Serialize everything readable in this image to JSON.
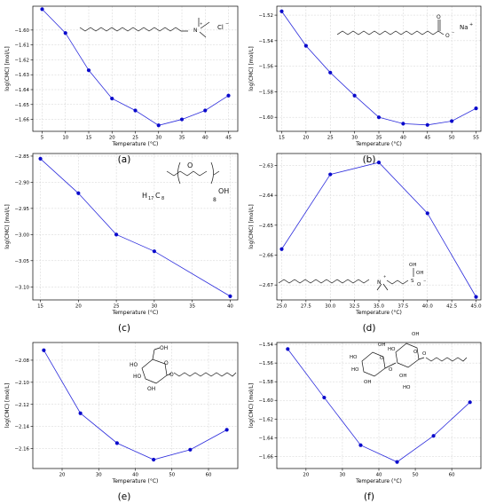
{
  "chart_data": [
    {
      "type": "line",
      "panel_label": "(a)",
      "xlabel": "Temperature (°C)",
      "ylabel": "log(CMC) [mol/L]",
      "xlim": [
        3,
        47
      ],
      "ylim": [
        -1.668,
        -1.584
      ],
      "xticks": [
        5,
        10,
        15,
        20,
        25,
        30,
        35,
        40,
        45
      ],
      "yticks": [
        -1.66,
        -1.65,
        -1.64,
        -1.63,
        -1.62,
        -1.61,
        -1.6
      ],
      "xtick_labels": [
        "5",
        "10",
        "15",
        "20",
        "25",
        "30",
        "35",
        "40",
        "45"
      ],
      "ytick_labels": [
        "−1.66",
        "−1.65",
        "−1.64",
        "−1.63",
        "−1.62",
        "−1.61",
        "−1.60"
      ],
      "grid": true,
      "x": [
        5,
        10,
        15,
        20,
        25,
        30,
        35,
        40,
        45
      ],
      "y": [
        -1.586,
        -1.602,
        -1.627,
        -1.646,
        -1.654,
        -1.664,
        -1.66,
        -1.654,
        -1.644
      ],
      "structure_labels": [
        "N",
        "+",
        "Cl",
        "−"
      ]
    },
    {
      "type": "line",
      "panel_label": "(b)",
      "xlabel": "Temperature (°C)",
      "ylabel": "log(CMC) [mol/L]",
      "xlim": [
        14,
        56
      ],
      "ylim": [
        -1.611,
        -1.513
      ],
      "xticks": [
        15,
        20,
        25,
        30,
        35,
        40,
        45,
        50,
        55
      ],
      "yticks": [
        -1.6,
        -1.58,
        -1.56,
        -1.54,
        -1.52
      ],
      "xtick_labels": [
        "15",
        "20",
        "25",
        "30",
        "35",
        "40",
        "45",
        "50",
        "55"
      ],
      "ytick_labels": [
        "−1.60",
        "−1.58",
        "−1.56",
        "−1.54",
        "−1.52"
      ],
      "grid": true,
      "x": [
        15,
        20,
        25,
        30,
        35,
        40,
        45,
        50,
        55
      ],
      "y": [
        -1.517,
        -1.544,
        -1.565,
        -1.583,
        -1.6,
        -1.605,
        -1.606,
        -1.603,
        -1.593
      ],
      "structure_labels": [
        "O",
        "O",
        "−",
        "Na",
        "+"
      ]
    },
    {
      "type": "line",
      "panel_label": "(c)",
      "xlabel": "Temperature (°C)",
      "ylabel": "log(CMC) [mol/L]",
      "xlim": [
        14,
        41
      ],
      "ylim": [
        -3.125,
        -2.845
      ],
      "xticks": [
        15,
        20,
        25,
        30,
        35,
        40
      ],
      "yticks": [
        -3.1,
        -3.05,
        -3.0,
        -2.95,
        -2.9,
        -2.85
      ],
      "xtick_labels": [
        "15",
        "20",
        "25",
        "30",
        "35",
        "40"
      ],
      "ytick_labels": [
        "−3.10",
        "−3.05",
        "−3.00",
        "−2.95",
        "−2.90",
        "−2.85"
      ],
      "grid": true,
      "x": [
        15,
        20,
        25,
        30,
        40
      ],
      "y": [
        -2.855,
        -2.921,
        -3.0,
        -3.032,
        -3.118
      ],
      "structure_labels": [
        "H",
        "17",
        "C",
        "8",
        "O",
        "OH",
        "8"
      ]
    },
    {
      "type": "line",
      "panel_label": "(d)",
      "xlabel": "Temperature (°C)",
      "ylabel": "log(CMC) [mol/L]",
      "xlim": [
        24.5,
        45.5
      ],
      "ylim": [
        -2.675,
        -2.626
      ],
      "xticks": [
        25.0,
        27.5,
        30.0,
        32.5,
        35.0,
        37.5,
        40.0,
        42.5,
        45.0
      ],
      "yticks": [
        -2.67,
        -2.66,
        -2.65,
        -2.64,
        -2.63
      ],
      "xtick_labels": [
        "25.0",
        "27.5",
        "30.0",
        "32.5",
        "35.0",
        "37.5",
        "40.0",
        "42.5",
        "45.0"
      ],
      "ytick_labels": [
        "−2.67",
        "−2.66",
        "−2.65",
        "−2.64",
        "−2.63"
      ],
      "grid": true,
      "x": [
        25,
        30,
        35,
        40,
        45
      ],
      "y": [
        -2.658,
        -2.633,
        -2.629,
        -2.646,
        -2.674
      ],
      "structure_labels": [
        "N",
        "+",
        "OH",
        "OH",
        "S",
        "O",
        "−"
      ]
    },
    {
      "type": "line",
      "panel_label": "(e)",
      "xlabel": "Temperature (°C)",
      "ylabel": "log(CMC) [mol/L]",
      "xlim": [
        12,
        68
      ],
      "ylim": [
        -2.178,
        -2.064
      ],
      "xticks": [
        20,
        30,
        40,
        50,
        60
      ],
      "yticks": [
        -2.16,
        -2.14,
        -2.12,
        -2.1,
        -2.08
      ],
      "xtick_labels": [
        "20",
        "30",
        "40",
        "50",
        "60"
      ],
      "ytick_labels": [
        "−2.16",
        "−2.14",
        "−2.12",
        "−2.10",
        "−2.08"
      ],
      "grid": true,
      "x": [
        15,
        25,
        35,
        45,
        55,
        65
      ],
      "y": [
        -2.071,
        -2.128,
        -2.155,
        -2.17,
        -2.161,
        -2.143
      ],
      "structure_labels": [
        "OH",
        "HO",
        "HO",
        "OH",
        "O",
        "O"
      ]
    },
    {
      "type": "line",
      "panel_label": "(f)",
      "xlabel": "Temperature (°C)",
      "ylabel": "log(CMC) [mol/L]",
      "xlim": [
        12,
        68
      ],
      "ylim": [
        -1.673,
        -1.538
      ],
      "xticks": [
        20,
        30,
        40,
        50,
        60
      ],
      "yticks": [
        -1.66,
        -1.64,
        -1.62,
        -1.6,
        -1.58,
        -1.56,
        -1.54
      ],
      "xtick_labels": [
        "20",
        "30",
        "40",
        "50",
        "60"
      ],
      "ytick_labels": [
        "−1.66",
        "−1.64",
        "−1.62",
        "−1.60",
        "−1.58",
        "−1.56",
        "−1.54"
      ],
      "grid": true,
      "x": [
        15,
        25,
        35,
        45,
        55,
        65
      ],
      "y": [
        -1.545,
        -1.597,
        -1.648,
        -1.666,
        -1.638,
        -1.602
      ],
      "structure_labels": [
        "HO",
        "OH",
        "HO",
        "OH",
        "OH",
        "HO",
        "O",
        "O",
        "O",
        "OH",
        "HO",
        "O"
      ]
    }
  ],
  "colors": {
    "line": "#2b2bdc",
    "marker": "#0a0acc",
    "grid": "#d0d0d0"
  }
}
